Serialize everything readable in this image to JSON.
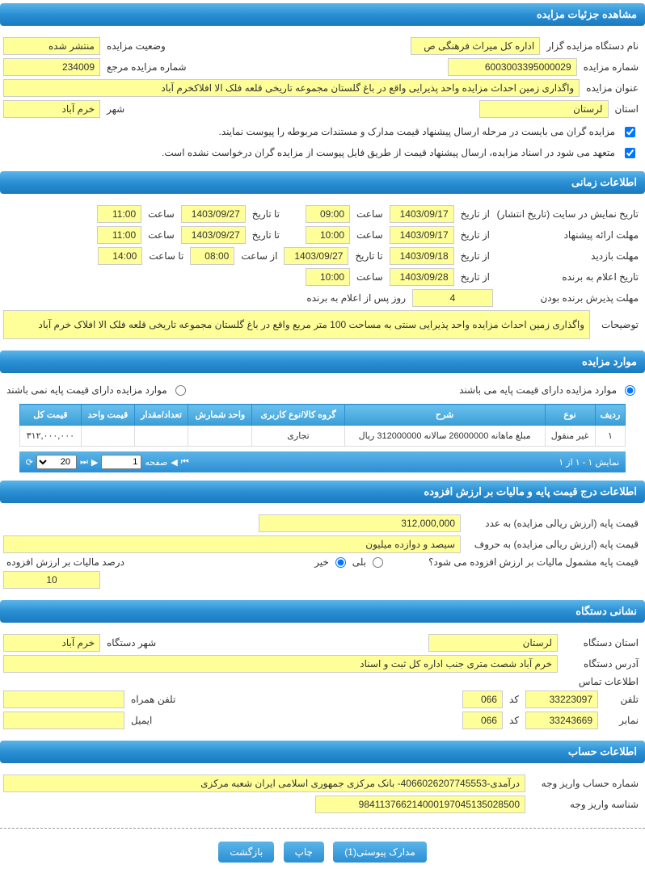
{
  "sections": {
    "details": "مشاهده جزئیات مزایده",
    "timing": "اطلاعات زمانی",
    "items": "موارد مزایده",
    "pricing": "اطلاعات درج قيمت پايه و ماليات بر ارزش افزوده",
    "address": "نشانی دستگاه",
    "account": "اطلاعات حساب"
  },
  "details": {
    "organizer_label": "نام دستگاه مزايده گزار",
    "organizer_value": "اداره کل ميراث فرهنگی  ص",
    "status_label": "وضعيت مزايده",
    "status_value": "منتشر شده",
    "auction_no_label": "شماره مزايده",
    "auction_no_value": "6003003395000029",
    "ref_no_label": "شماره مزايده مرجع",
    "ref_no_value": "234009",
    "title_label": "عنوان مزايده",
    "title_value": "واگذاری زمين احداث مزايده واحد پذيرايی واقع در باغ گلستان مجموعه تاريخی قلعه فلک الا افلاکخرم آباد",
    "province_label": "استان",
    "province_value": "لرستان",
    "city_label": "شهر",
    "city_value": "خرم آباد",
    "note1": "مزايده گران می بايست در مرحله ارسال پيشنهاد قيمت مدارک و مستندات مربوطه را پيوست نمايند.",
    "note2": "متعهد می شود در اسناد مزايده، ارسال پيشنهاد قيمت از طريق فايل پيوست از مزايده گران درخواست نشده است."
  },
  "timing": {
    "display_label": "تاريخ نمايش در سايت (تاريخ انتشار)",
    "from_date_label": "از تاريخ",
    "to_date_label": "تا تاريخ",
    "time_label": "ساعت",
    "from_time_label": "از ساعت",
    "to_time_label": "تا ساعت",
    "display_from_date": "1403/09/17",
    "display_from_time": "09:00",
    "display_to_date": "1403/09/27",
    "display_to_time": "11:00",
    "bid_deadline_label": "مهلت ارائه پيشنهاد",
    "bid_from_date": "1403/09/17",
    "bid_from_time": "10:00",
    "bid_to_date": "1403/09/27",
    "bid_to_time": "11:00",
    "visit_label": "مهلت بازديد",
    "visit_from_date": "1403/09/18",
    "visit_to_date": "1403/09/27",
    "visit_from_time": "08:00",
    "visit_to_time": "14:00",
    "announce_label": "تاريخ اعلام به برنده",
    "announce_date": "1403/09/28",
    "announce_time": "10:00",
    "winner_accept_label": "مهلت پذيرش برنده بودن",
    "winner_accept_days": "4",
    "winner_accept_suffix": "روز پس از اعلام به برنده",
    "desc_label": "توضيحات",
    "desc_value": "واگذاری زمين احداث مزايده واحد پذيرايی سنتی به مساحت 100 متر مربع  واقع در باغ گلستان مجموعه تاريخی قلعه فلک الا افلاک خرم آباد"
  },
  "items": {
    "has_base_label": "موارد مزايده دارای قيمت پايه می باشند",
    "no_base_label": "موارد مزايده دارای قيمت پايه نمی باشند",
    "columns": [
      "رديف",
      "نوع",
      "شرح",
      "گروه کالا/نوع کاربری",
      "واحد شمارش",
      "تعداد/مقدار",
      "قيمت واحد",
      "قيمت کل"
    ],
    "rows": [
      [
        "۱",
        "غير منقول",
        "مبلغ ماهانه 26000000 سالانه 312000000 ريال",
        "تجاری",
        "",
        "",
        "",
        "۳۱۲,۰۰۰,۰۰۰"
      ]
    ],
    "pager_info": "نمايش ۱ - ۱ از ۱",
    "page_label": "صفحه",
    "page_value": "1",
    "page_size": "20"
  },
  "pricing": {
    "base_num_label": "قيمت پايه (ارزش ريالی مزايده) به عدد",
    "base_num_value": "312,000,000",
    "base_text_label": "قيمت پايه (ارزش ريالی مزايده) به حروف",
    "base_text_value": "سيصد و دوازده ميليون",
    "vat_q_label": "قيمت پايه مشمول ماليات بر ارزش افزوده می شود؟",
    "yes_label": "بلی",
    "no_label": "خير",
    "vat_pct_label": "درصد ماليات بر ارزش افزوده",
    "vat_pct_value": "10"
  },
  "address": {
    "province_label": "استان دستگاه",
    "province_value": "لرستان",
    "city_label": "شهر دستگاه",
    "city_value": "خرم آباد",
    "addr_label": "آدرس دستگاه",
    "addr_value": "خرم آباد شصت متری جنب اداره کل ثبت و اسناد",
    "contact_label": "اطلاعات تماس",
    "phone_label": "تلفن",
    "phone_value": "33223097",
    "code_label": "كد",
    "phone_code": "066",
    "mobile_label": "تلفن همراه",
    "mobile_value": "",
    "fax_label": "نمابر",
    "fax_value": "33243669",
    "fax_code": "066",
    "email_label": "ايميل",
    "email_value": ""
  },
  "account": {
    "acc_no_label": "شماره حساب واريز وجه",
    "acc_no_value": "درآمدی-4066026207745553- بانک مرکزی جمهوری اسلامی ايران شعبه مرکزی",
    "acc_id_label": "شناسه واريز وجه",
    "acc_id_value": "984113766214000197045135028500"
  },
  "buttons": {
    "attachments": "مدارک پيوستی(1)",
    "print": "چاپ",
    "back": "بازگشت"
  },
  "colors": {
    "header_grad_top": "#5bb5e8",
    "header_grad_bot": "#1a7abf",
    "field_bg": "#ffff99",
    "watermark": "#cc3333"
  }
}
